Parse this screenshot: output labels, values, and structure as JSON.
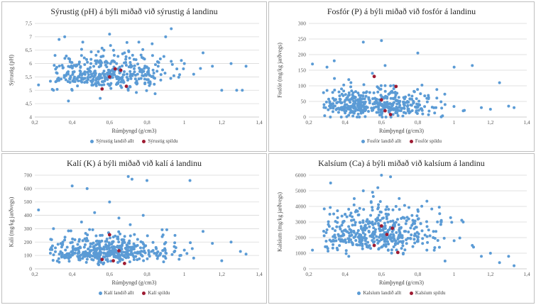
{
  "colors": {
    "all": "#5b9bd5",
    "field": "#9e1b32",
    "grid": "#d9d9d9",
    "axis": "#bfbfbf"
  },
  "chart_data": [
    {
      "type": "scatter",
      "title": "Sýrustig (pH) á býli miðað við sýrustig á landinu",
      "xlabel": "Rúmþyngd (g/cm3)",
      "ylabel": "Sýrustig (pH)",
      "xlim": [
        0.2,
        1.4
      ],
      "ylim": [
        4,
        7.5
      ],
      "xticks": [
        0.2,
        0.4,
        0.6,
        0.8,
        1,
        1.2,
        1.4
      ],
      "yticks": [
        4,
        4.5,
        5,
        5.5,
        6,
        6.5,
        7,
        7.5
      ],
      "xtick_labels": [
        "0,2",
        "0,4",
        "0,6",
        "0,8",
        "1",
        "1,2",
        "1,4"
      ],
      "ytick_labels": [
        "4",
        "4,5",
        "5",
        "5,5",
        "6",
        "6,5",
        "7",
        "7,5"
      ],
      "grid": true,
      "legend_position": "bottom",
      "series": [
        {
          "name": "Sýrustig landið allt",
          "points": [
            [
              0.22,
              5.2
            ],
            [
              0.3,
              5.0
            ],
            [
              0.33,
              6.9
            ],
            [
              0.36,
              7.0
            ],
            [
              0.38,
              4.6
            ],
            [
              0.4,
              5.0
            ],
            [
              0.42,
              5.9
            ],
            [
              0.45,
              6.3
            ],
            [
              0.48,
              5.3
            ],
            [
              0.5,
              6.0
            ],
            [
              0.52,
              5.7
            ],
            [
              0.55,
              4.7
            ],
            [
              0.57,
              6.5
            ],
            [
              0.6,
              7.1
            ],
            [
              0.62,
              6.1
            ],
            [
              0.65,
              5.4
            ],
            [
              0.68,
              6.4
            ],
            [
              0.7,
              5.0
            ],
            [
              0.72,
              5.9
            ],
            [
              0.75,
              5.6
            ],
            [
              0.78,
              6.2
            ],
            [
              0.8,
              5.4
            ],
            [
              0.83,
              6.3
            ],
            [
              0.86,
              5.9
            ],
            [
              0.9,
              7.0
            ],
            [
              0.93,
              7.3
            ],
            [
              0.96,
              5.8
            ],
            [
              1.0,
              6.0
            ],
            [
              1.05,
              5.6
            ],
            [
              1.1,
              6.4
            ],
            [
              1.15,
              5.9
            ],
            [
              1.2,
              5.0
            ],
            [
              1.25,
              6.0
            ],
            [
              1.28,
              5.0
            ],
            [
              1.31,
              5.0
            ],
            [
              1.33,
              5.9
            ]
          ]
        },
        {
          "name": "Sýrustig spildu",
          "points": [
            [
              0.56,
              5.05
            ],
            [
              0.6,
              5.5
            ],
            [
              0.63,
              5.8
            ],
            [
              0.66,
              5.75
            ],
            [
              0.69,
              5.15
            ]
          ]
        }
      ]
    },
    {
      "type": "scatter",
      "title": "Fosfór (P) á býli miðað við fosfór á landinu",
      "xlabel": "Rúmþyngd (g/cm3)",
      "ylabel": "Fosfór (mg/kg jarðvegs)",
      "xlim": [
        0.2,
        1.4
      ],
      "ylim": [
        0,
        300
      ],
      "xticks": [
        0.2,
        0.4,
        0.6,
        0.8,
        1,
        1.2,
        1.4
      ],
      "yticks": [
        0,
        50,
        100,
        150,
        200,
        250,
        300
      ],
      "xtick_labels": [
        "0,2",
        "0,4",
        "0,6",
        "0,8",
        "1",
        "1,2",
        "1,4"
      ],
      "ytick_labels": [
        "0",
        "50",
        "100",
        "150",
        "200",
        "250",
        "300"
      ],
      "grid": true,
      "legend_position": "bottom",
      "series": [
        {
          "name": "Fosfór landið allt",
          "points": [
            [
              0.22,
              170
            ],
            [
              0.3,
              160
            ],
            [
              0.34,
              180
            ],
            [
              0.38,
              90
            ],
            [
              0.4,
              40
            ],
            [
              0.42,
              120
            ],
            [
              0.45,
              60
            ],
            [
              0.5,
              240
            ],
            [
              0.52,
              30
            ],
            [
              0.55,
              140
            ],
            [
              0.58,
              80
            ],
            [
              0.6,
              245
            ],
            [
              0.62,
              165
            ],
            [
              0.65,
              100
            ],
            [
              0.7,
              50
            ],
            [
              0.75,
              20
            ],
            [
              0.8,
              205
            ],
            [
              0.85,
              60
            ],
            [
              0.9,
              30
            ],
            [
              0.95,
              40
            ],
            [
              1.0,
              160
            ],
            [
              1.05,
              20
            ],
            [
              1.1,
              165
            ],
            [
              1.15,
              30
            ],
            [
              1.2,
              25
            ],
            [
              1.25,
              110
            ],
            [
              1.3,
              35
            ],
            [
              1.33,
              30
            ]
          ]
        },
        {
          "name": "Fosfór spildu",
          "points": [
            [
              0.56,
              130
            ],
            [
              0.6,
              55
            ],
            [
              0.62,
              20
            ],
            [
              0.65,
              8
            ],
            [
              0.68,
              98
            ]
          ]
        }
      ]
    },
    {
      "type": "scatter",
      "title": "Kalí (K) á býli miðað við kalí á landinu",
      "xlabel": "Rúmþyngd (g/cm3)",
      "ylabel": "Kalí (mg/kg jarðvegs)",
      "xlim": [
        0.2,
        1.4
      ],
      "ylim": [
        0,
        700
      ],
      "xticks": [
        0.2,
        0.4,
        0.6,
        0.8,
        1,
        1.2,
        1.4
      ],
      "yticks": [
        0,
        100,
        200,
        300,
        400,
        500,
        600,
        700
      ],
      "xtick_labels": [
        "0,2",
        "0,4",
        "0,6",
        "0,8",
        "1",
        "1,2",
        "1,4"
      ],
      "ytick_labels": [
        "0",
        "100",
        "200",
        "300",
        "400",
        "500",
        "600",
        "700"
      ],
      "grid": true,
      "legend_position": "bottom",
      "series": [
        {
          "name": "Kalí landið allt",
          "points": [
            [
              0.22,
              440
            ],
            [
              0.3,
              300
            ],
            [
              0.35,
              200
            ],
            [
              0.4,
              620
            ],
            [
              0.42,
              150
            ],
            [
              0.45,
              350
            ],
            [
              0.48,
              600
            ],
            [
              0.5,
              100
            ],
            [
              0.52,
              420
            ],
            [
              0.55,
              250
            ],
            [
              0.58,
              180
            ],
            [
              0.6,
              500
            ],
            [
              0.62,
              130
            ],
            [
              0.65,
              380
            ],
            [
              0.68,
              90
            ],
            [
              0.7,
              690
            ],
            [
              0.72,
              670
            ],
            [
              0.75,
              220
            ],
            [
              0.78,
              400
            ],
            [
              0.8,
              660
            ],
            [
              0.85,
              150
            ],
            [
              0.9,
              120
            ],
            [
              0.95,
              250
            ],
            [
              1.0,
              140
            ],
            [
              1.03,
              660
            ],
            [
              1.05,
              80
            ],
            [
              1.1,
              280
            ],
            [
              1.15,
              190
            ],
            [
              1.2,
              60
            ],
            [
              1.25,
              200
            ],
            [
              1.3,
              130
            ],
            [
              1.33,
              110
            ]
          ]
        },
        {
          "name": "Kalí spildu",
          "points": [
            [
              0.56,
              70
            ],
            [
              0.6,
              255
            ],
            [
              0.62,
              60
            ],
            [
              0.65,
              135
            ],
            [
              0.68,
              40
            ]
          ]
        }
      ]
    },
    {
      "type": "scatter",
      "title": "Kalsíum (Ca) á býli miðað við kalsíum á landinu",
      "xlabel": "Rúmþyngd (g/cm3)",
      "ylabel": "Kalsíum (mg/kg jarðvegs)",
      "xlim": [
        0.2,
        1.4
      ],
      "ylim": [
        0,
        6000
      ],
      "xticks": [
        0.2,
        0.4,
        0.6,
        0.8,
        1,
        1.2,
        1.4
      ],
      "yticks": [
        0,
        1000,
        2000,
        3000,
        4000,
        5000,
        6000
      ],
      "xtick_labels": [
        "0,2",
        "0,4",
        "0,6",
        "0,8",
        "1",
        "1,2",
        "1,4"
      ],
      "ytick_labels": [
        "0",
        "1000",
        "2000",
        "3000",
        "4000",
        "5000",
        "6000"
      ],
      "grid": true,
      "legend_position": "bottom",
      "series": [
        {
          "name": "Kalsíum landið allt",
          "points": [
            [
              0.22,
              1200
            ],
            [
              0.3,
              2500
            ],
            [
              0.32,
              5500
            ],
            [
              0.35,
              1800
            ],
            [
              0.4,
              3500
            ],
            [
              0.42,
              800
            ],
            [
              0.45,
              4500
            ],
            [
              0.48,
              2200
            ],
            [
              0.5,
              5000
            ],
            [
              0.52,
              1500
            ],
            [
              0.55,
              3000
            ],
            [
              0.58,
              5200
            ],
            [
              0.6,
              6000
            ],
            [
              0.62,
              2000
            ],
            [
              0.65,
              5900
            ],
            [
              0.68,
              4000
            ],
            [
              0.7,
              2600
            ],
            [
              0.72,
              1000
            ],
            [
              0.75,
              3200
            ],
            [
              0.8,
              2000
            ],
            [
              0.85,
              1200
            ],
            [
              0.9,
              2400
            ],
            [
              0.95,
              500
            ],
            [
              1.0,
              1800
            ],
            [
              1.05,
              3000
            ],
            [
              1.1,
              1500
            ],
            [
              1.15,
              800
            ],
            [
              1.2,
              1000
            ],
            [
              1.25,
              400
            ],
            [
              1.3,
              800
            ],
            [
              1.33,
              200
            ]
          ]
        },
        {
          "name": "Kalsíum spildu",
          "points": [
            [
              0.56,
              1500
            ],
            [
              0.6,
              2750
            ],
            [
              0.63,
              2200
            ],
            [
              0.66,
              2600
            ],
            [
              0.69,
              1050
            ]
          ]
        }
      ]
    }
  ]
}
